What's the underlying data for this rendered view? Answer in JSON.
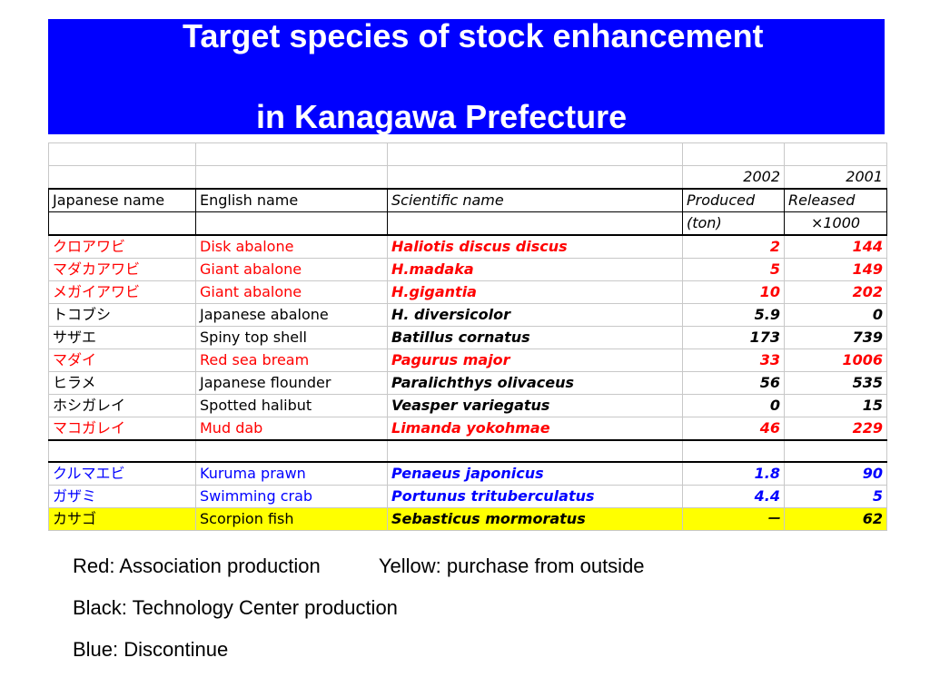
{
  "title": {
    "line1": "Target species of stock enhancement",
    "line2": "in Kanagawa  Prefecture"
  },
  "table": {
    "year_row": [
      "",
      "",
      "",
      "2002",
      "2001"
    ],
    "header_row": [
      "Japanese name",
      "English name",
      "Scientific name",
      "Produced",
      "Released"
    ],
    "units_row": [
      "",
      "",
      "",
      "(ton)",
      "×1000"
    ],
    "rows": [
      {
        "jp": "クロアワビ",
        "en": "Disk abalone",
        "sci": "Haliotis discus discus",
        "produced": "2",
        "released": "144",
        "color": "red",
        "highlight": false
      },
      {
        "jp": "マダカアワビ",
        "en": "Giant abalone",
        "sci": "H.madaka",
        "produced": "5",
        "released": "149",
        "color": "red",
        "highlight": false
      },
      {
        "jp": "メガイアワビ",
        "en": "Giant abalone",
        "sci": "H.gigantia",
        "produced": "10",
        "released": "202",
        "color": "red",
        "highlight": false
      },
      {
        "jp": "トコブシ",
        "en": "Japanese abalone",
        "sci": "H. diversicolor",
        "produced": "5.9",
        "released": "0",
        "color": "black",
        "highlight": false
      },
      {
        "jp": "サザエ",
        "en": "Spiny top shell",
        "sci": "Batillus cornatus",
        "produced": "173",
        "released": "739",
        "color": "black",
        "highlight": false
      },
      {
        "jp": "マダイ",
        "en": "Red sea bream",
        "sci": "Pagurus major",
        "produced": "33",
        "released": "1006",
        "color": "red",
        "highlight": false
      },
      {
        "jp": "ヒラメ",
        "en": "Japanese flounder",
        "sci": "Paralichthys olivaceus",
        "produced": "56",
        "released": "535",
        "color": "black",
        "highlight": false
      },
      {
        "jp": "ホシガレイ",
        "en": "Spotted halibut",
        "sci": "Veasper variegatus",
        "produced": "0",
        "released": "15",
        "color": "black",
        "highlight": false
      },
      {
        "jp": "マコガレイ",
        "en": "Mud dab",
        "sci": "Limanda yokohmae",
        "produced": "46",
        "released": "229",
        "color": "red",
        "highlight": false
      }
    ],
    "rows2": [
      {
        "jp": "クルマエビ",
        "en": "Kuruma prawn",
        "sci": "Penaeus japonicus",
        "produced": "1.8",
        "released": "90",
        "color": "blue",
        "highlight": false
      },
      {
        "jp": "ガザミ",
        "en": "Swimming crab",
        "sci": "Portunus trituberculatus",
        "produced": "4.4",
        "released": "5",
        "color": "blue",
        "highlight": false
      },
      {
        "jp": "カサゴ",
        "en": "Scorpion fish",
        "sci": "Sebasticus mormoratus",
        "produced": "－",
        "released": "62",
        "color": "black",
        "highlight": true
      }
    ]
  },
  "legend": {
    "red": "Red: Association production",
    "yellow": "Yellow: purchase from outside",
    "black": "Black: Technology Center production",
    "blue": "Blue: Discontinue"
  },
  "colors": {
    "title_bg": "#0000ff",
    "red": "#ff0000",
    "blue": "#0000ff",
    "yellow": "#ffff00"
  }
}
